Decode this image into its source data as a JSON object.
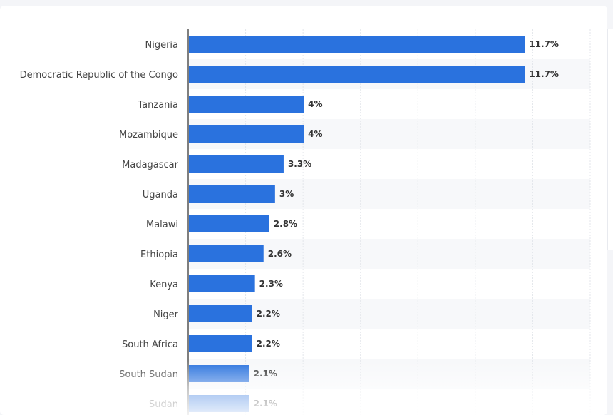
{
  "colors": {
    "bar": "#2a72de",
    "grid": "#e3e6eb",
    "band": "#f7f8fa",
    "axis": "#555555"
  },
  "chart_data": {
    "type": "bar",
    "orientation": "horizontal",
    "categories": [
      "Nigeria",
      "Democratic Republic of the Congo",
      "Tanzania",
      "Mozambique",
      "Madagascar",
      "Uganda",
      "Malawi",
      "Ethiopia",
      "Kenya",
      "Niger",
      "South Africa",
      "South Sudan",
      "Sudan"
    ],
    "values": [
      11.7,
      11.7,
      4,
      4,
      3.3,
      3,
      2.8,
      2.6,
      2.3,
      2.2,
      2.2,
      2.1,
      2.1
    ],
    "value_labels": [
      "11.7%",
      "11.7%",
      "4%",
      "4%",
      "3.3%",
      "3%",
      "2.8%",
      "2.6%",
      "2.3%",
      "2.2%",
      "2.2%",
      "2.1%",
      "2.1%"
    ],
    "unit": "%",
    "xlim": [
      0,
      14
    ],
    "grid": true,
    "legend": "none"
  }
}
